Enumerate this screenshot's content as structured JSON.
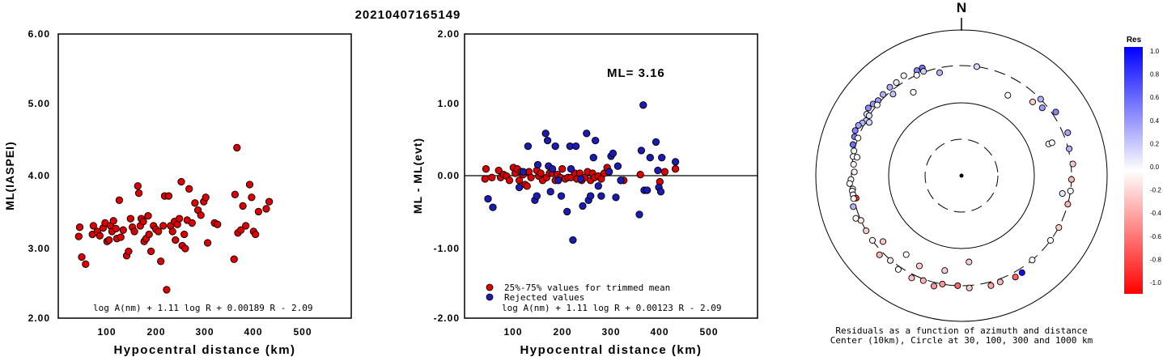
{
  "page_title": "20210407165149",
  "chart_data": [
    {
      "type": "scatter",
      "title": "",
      "xlabel": "Hypocentral distance (km)",
      "ylabel": "ML(IASPEI)",
      "xlim": [
        0,
        600
      ],
      "ylim": [
        2.0,
        6.0
      ],
      "xticks": [
        "100",
        "200",
        "300",
        "400",
        "500"
      ],
      "yticks": [
        "2.00",
        "3.00",
        "4.00",
        "5.00",
        "6.00"
      ],
      "formula": "log A(nm) + 1.11 log R + 0.00189 R - 2.09",
      "point_color": "#dd0000",
      "points": [
        [
          42,
          3.15
        ],
        [
          44,
          3.28
        ],
        [
          48,
          2.86
        ],
        [
          56,
          2.76
        ],
        [
          70,
          3.18
        ],
        [
          72,
          3.3
        ],
        [
          80,
          3.22
        ],
        [
          85,
          3.16
        ],
        [
          92,
          3.27
        ],
        [
          96,
          3.34
        ],
        [
          100,
          3.08
        ],
        [
          104,
          3.1
        ],
        [
          107,
          3.3
        ],
        [
          110,
          3.22
        ],
        [
          113,
          3.37
        ],
        [
          118,
          3.26
        ],
        [
          120,
          3.12
        ],
        [
          125,
          3.66
        ],
        [
          128,
          3.14
        ],
        [
          133,
          3.24
        ],
        [
          140,
          2.88
        ],
        [
          144,
          2.94
        ],
        [
          148,
          3.4
        ],
        [
          152,
          3.28
        ],
        [
          156,
          3.22
        ],
        [
          163,
          3.86
        ],
        [
          165,
          3.76
        ],
        [
          168,
          3.3
        ],
        [
          170,
          3.4
        ],
        [
          174,
          3.36
        ],
        [
          176,
          3.08
        ],
        [
          180,
          3.12
        ],
        [
          184,
          3.44
        ],
        [
          186,
          3.18
        ],
        [
          190,
          2.94
        ],
        [
          195,
          3.3
        ],
        [
          200,
          3.25
        ],
        [
          205,
          3.22
        ],
        [
          210,
          2.8
        ],
        [
          215,
          3.3
        ],
        [
          218,
          3.72
        ],
        [
          222,
          2.4
        ],
        [
          226,
          3.72
        ],
        [
          230,
          3.3
        ],
        [
          234,
          3.22
        ],
        [
          238,
          3.36
        ],
        [
          240,
          3.1
        ],
        [
          244,
          3.32
        ],
        [
          248,
          3.4
        ],
        [
          252,
          3.92
        ],
        [
          254,
          3.02
        ],
        [
          258,
          3.18
        ],
        [
          260,
          2.98
        ],
        [
          264,
          3.38
        ],
        [
          268,
          3.82
        ],
        [
          274,
          3.34
        ],
        [
          280,
          3.62
        ],
        [
          286,
          3.52
        ],
        [
          292,
          3.45
        ],
        [
          298,
          3.64
        ],
        [
          302,
          3.7
        ],
        [
          306,
          3.06
        ],
        [
          320,
          3.34
        ],
        [
          326,
          3.32
        ],
        [
          360,
          2.83
        ],
        [
          362,
          3.74
        ],
        [
          366,
          4.4
        ],
        [
          368,
          3.2
        ],
        [
          374,
          3.24
        ],
        [
          378,
          3.58
        ],
        [
          384,
          3.3
        ],
        [
          392,
          3.88
        ],
        [
          396,
          3.7
        ],
        [
          400,
          3.22
        ],
        [
          404,
          3.18
        ],
        [
          410,
          3.5
        ],
        [
          426,
          3.54
        ],
        [
          432,
          3.64
        ]
      ]
    },
    {
      "type": "scatter",
      "title": "",
      "xlabel": "Hypocentral distance (km)",
      "ylabel": "ML - ML(evt)",
      "xlim": [
        0,
        600
      ],
      "ylim": [
        -2.0,
        2.0
      ],
      "xticks": [
        "100",
        "200",
        "300",
        "400",
        "500"
      ],
      "yticks": [
        "-2.00",
        "-1.00",
        "0.00",
        "1.00",
        "2.00"
      ],
      "annotation": "ML= 3.16",
      "legend": [
        "25%-75% values for trimmed mean",
        "Rejected values"
      ],
      "formula": "log A(nm) + 1.11 log R + 0.00123 R - 2.09",
      "series": [
        {
          "name": "25%-75% values for trimmed mean",
          "color": "#dd0000",
          "points": [
            [
              42,
              -0.04
            ],
            [
              44,
              0.1
            ],
            [
              56,
              -0.02
            ],
            [
              70,
              0.08
            ],
            [
              74,
              -0.02
            ],
            [
              80,
              0.02
            ],
            [
              86,
              0.0
            ],
            [
              92,
              -0.06
            ],
            [
              100,
              0.12
            ],
            [
              104,
              0.04
            ],
            [
              108,
              0.1
            ],
            [
              112,
              -0.06
            ],
            [
              116,
              0.06
            ],
            [
              120,
              0.02
            ],
            [
              124,
              -0.12
            ],
            [
              128,
              -0.14
            ],
            [
              132,
              0.06
            ],
            [
              136,
              -0.02
            ],
            [
              148,
              0.08
            ],
            [
              152,
              0.0
            ],
            [
              156,
              0.04
            ],
            [
              160,
              -0.06
            ],
            [
              168,
              -0.02
            ],
            [
              174,
              0.04
            ],
            [
              180,
              0.04
            ],
            [
              186,
              -0.06
            ],
            [
              190,
              0.02
            ],
            [
              196,
              -0.02
            ],
            [
              200,
              0.1
            ],
            [
              206,
              -0.04
            ],
            [
              212,
              -0.02
            ],
            [
              218,
              -0.02
            ],
            [
              226,
              0.04
            ],
            [
              230,
              -0.04
            ],
            [
              236,
              0.04
            ],
            [
              240,
              -0.06
            ],
            [
              246,
              -0.02
            ],
            [
              252,
              0.06
            ],
            [
              258,
              -0.06
            ],
            [
              262,
              0.04
            ],
            [
              266,
              -0.02
            ],
            [
              274,
              0.0
            ],
            [
              280,
              -0.04
            ],
            [
              286,
              0.04
            ],
            [
              292,
              0.12
            ],
            [
              296,
              0.06
            ],
            [
              320,
              -0.06
            ],
            [
              326,
              -0.06
            ],
            [
              360,
              0.02
            ],
            [
              400,
              -0.08
            ],
            [
              410,
              0.06
            ],
            [
              432,
              0.1
            ]
          ]
        },
        {
          "name": "Rejected values",
          "color": "#1a1ab4",
          "points": [
            [
              48,
              -0.32
            ],
            [
              58,
              -0.44
            ],
            [
              112,
              -0.16
            ],
            [
              120,
              0.06
            ],
            [
              130,
              0.42
            ],
            [
              144,
              -0.34
            ],
            [
              148,
              -0.28
            ],
            [
              150,
              0.16
            ],
            [
              166,
              0.6
            ],
            [
              170,
              0.5
            ],
            [
              172,
              0.14
            ],
            [
              176,
              -0.22
            ],
            [
              180,
              0.1
            ],
            [
              186,
              0.42
            ],
            [
              192,
              -0.06
            ],
            [
              198,
              -0.28
            ],
            [
              210,
              -0.5
            ],
            [
              216,
              0.42
            ],
            [
              218,
              0.1
            ],
            [
              222,
              -0.9
            ],
            [
              228,
              0.42
            ],
            [
              238,
              -0.04
            ],
            [
              242,
              -0.42
            ],
            [
              250,
              0.6
            ],
            [
              254,
              -0.34
            ],
            [
              258,
              -0.28
            ],
            [
              264,
              0.26
            ],
            [
              268,
              0.5
            ],
            [
              274,
              -0.14
            ],
            [
              280,
              -0.28
            ],
            [
              296,
              0.06
            ],
            [
              300,
              0.28
            ],
            [
              304,
              0.32
            ],
            [
              310,
              -0.3
            ],
            [
              314,
              0.14
            ],
            [
              320,
              -0.06
            ],
            [
              358,
              -0.54
            ],
            [
              362,
              0.36
            ],
            [
              366,
              1.0
            ],
            [
              368,
              -0.2
            ],
            [
              374,
              -0.2
            ],
            [
              380,
              0.26
            ],
            [
              392,
              0.48
            ],
            [
              396,
              0.08
            ],
            [
              398,
              -0.16
            ],
            [
              402,
              -0.22
            ],
            [
              404,
              0.26
            ],
            [
              432,
              0.2
            ]
          ]
        }
      ]
    },
    {
      "type": "scatter",
      "title": "N",
      "caption_line1": "Residuals as a function of azimuth and distance",
      "caption_line2": "Center (10km), Circle at 30, 100, 300 and 1000 km",
      "colorbar_title": "Res",
      "colorbar_ticks": [
        "1.0",
        "0.8",
        "0.6",
        "0.4",
        "0.2",
        "0.0",
        "-0.2",
        "-0.4",
        "-0.6",
        "-0.8",
        "-1.0"
      ],
      "colorbar_range": [
        -1.0,
        1.0
      ],
      "colors": {
        "positive": "#0000ff",
        "zero": "#ffffff",
        "negative": "#ff0000"
      },
      "point_format": "[azimuth_deg, distance_km, residual]",
      "points": [
        [
          340,
          350,
          0.55
        ],
        [
          337,
          344,
          0.48
        ],
        [
          330,
          360,
          0.05
        ],
        [
          325,
          338,
          0.1
        ],
        [
          321,
          340,
          0.32
        ],
        [
          316,
          330,
          0.3
        ],
        [
          312,
          322,
          0.38
        ],
        [
          309,
          340,
          0.4
        ],
        [
          306,
          356,
          0.45
        ],
        [
          303,
          330,
          0.1
        ],
        [
          300,
          300,
          0.2
        ],
        [
          298,
          322,
          0.3
        ],
        [
          303,
          300,
          0.12
        ],
        [
          296,
          350,
          0.36
        ],
        [
          293,
          360,
          0.48
        ],
        [
          290,
          340,
          0.5
        ],
        [
          286,
          330,
          0.56
        ],
        [
          283,
          302,
          0.04
        ],
        [
          280,
          300,
          0.0
        ],
        [
          276,
          286,
          -0.02
        ],
        [
          272,
          276,
          -0.06
        ],
        [
          268,
          306,
          0.0
        ],
        [
          266,
          322,
          0.02
        ],
        [
          263,
          296,
          0.0
        ],
        [
          262,
          302,
          0.02
        ],
        [
          260,
          300,
          0.04
        ],
        [
          258,
          280,
          -0.8
        ],
        [
          258,
          302,
          0.0
        ],
        [
          254,
          326,
          0.3
        ],
        [
          248,
          342,
          0.0
        ],
        [
          246,
          300,
          -0.1
        ],
        [
          240,
          300,
          -0.2
        ],
        [
          234,
          300,
          -0.04
        ],
        [
          226,
          342,
          -0.3
        ],
        [
          220,
          306,
          -0.1
        ],
        [
          214,
          332,
          0.0
        ],
        [
          206,
          340,
          -0.24
        ],
        [
          200,
          316,
          -0.3
        ],
        [
          194,
          340,
          -0.4
        ],
        [
          190,
          300,
          -0.4
        ],
        [
          182,
          300,
          -0.6
        ],
        [
          176,
          326,
          -0.2
        ],
        [
          165,
          340,
          -0.36
        ],
        [
          160,
          332,
          -0.28
        ],
        [
          152,
          352,
          -0.62
        ],
        [
          148,
          346,
          0.95
        ],
        [
          140,
          300,
          0.0
        ],
        [
          126,
          300,
          0.0
        ],
        [
          118,
          302,
          -0.2
        ],
        [
          105,
          300,
          -0.3
        ],
        [
          98,
          300,
          0.0
        ],
        [
          92,
          300,
          -0.3
        ],
        [
          84,
          320,
          -0.22
        ],
        [
          76,
          310,
          0.3
        ],
        [
          68,
          350,
          0.35
        ],
        [
          56,
          340,
          0.48
        ],
        [
          46,
          300,
          0.3
        ],
        [
          50,
          262,
          0.4
        ],
        [
          44,
          240,
          -0.2
        ],
        [
          30,
          180,
          0.0
        ],
        [
          8,
          300,
          0.16
        ],
        [
          340,
          310,
          0.2
        ],
        [
          336,
          300,
          0.0
        ],
        [
          310,
          300,
          -0.02
        ],
        [
          290,
          300,
          0.0
        ],
        [
          280,
          266,
          0.0
        ],
        [
          230,
          240,
          -0.22
        ],
        [
          215,
          200,
          0.0
        ],
        [
          205,
          220,
          -0.2
        ],
        [
          190,
          200,
          -0.2
        ],
        [
          175,
          150,
          -0.2
        ],
        [
          70,
          180,
          0.0
        ],
        [
          330,
          200,
          0.0
        ],
        [
          348,
          260,
          0.3
        ],
        [
          320,
          270,
          0.24
        ],
        [
          300,
          270,
          0.16
        ],
        [
          70,
          200,
          0.0
        ],
        [
          100,
          240,
          0.1
        ]
      ]
    }
  ]
}
